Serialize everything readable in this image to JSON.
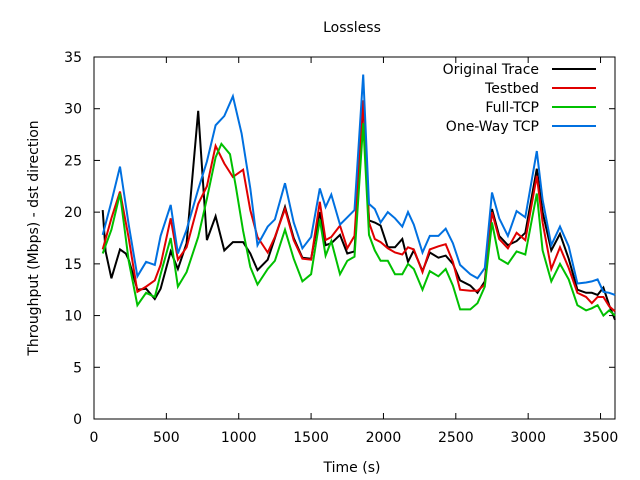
{
  "chart_data": {
    "type": "line",
    "title": "Lossless",
    "xlabel": "Time (s)",
    "ylabel": "Throughput (Mbps) - dst direction",
    "xlim": [
      0,
      3600
    ],
    "ylim": [
      0,
      35
    ],
    "xticks": [
      0,
      500,
      1000,
      1500,
      2000,
      2500,
      3000,
      3500
    ],
    "yticks": [
      0,
      5,
      10,
      15,
      20,
      25,
      30,
      35
    ],
    "grid": false,
    "legend_position": "top-right",
    "series": [
      {
        "name": "Original Trace",
        "color": "#000000",
        "points": [
          [
            60,
            20.2
          ],
          [
            80,
            16.2
          ],
          [
            120,
            13.6
          ],
          [
            180,
            16.4
          ],
          [
            220,
            16
          ],
          [
            240,
            15.4
          ],
          [
            300,
            12.5
          ],
          [
            360,
            12.6
          ],
          [
            420,
            11.6
          ],
          [
            460,
            12.6
          ],
          [
            530,
            16.2
          ],
          [
            580,
            14.5
          ],
          [
            640,
            17
          ],
          [
            720,
            29.8
          ],
          [
            780,
            17.3
          ],
          [
            840,
            19.6
          ],
          [
            900,
            16.3
          ],
          [
            960,
            17.1
          ],
          [
            1030,
            17.1
          ],
          [
            1080,
            16
          ],
          [
            1130,
            14.4
          ],
          [
            1200,
            15.4
          ],
          [
            1250,
            17.5
          ],
          [
            1320,
            20.5
          ],
          [
            1380,
            17.5
          ],
          [
            1440,
            15.6
          ],
          [
            1500,
            15.5
          ],
          [
            1560,
            20
          ],
          [
            1600,
            16.8
          ],
          [
            1640,
            17
          ],
          [
            1700,
            17.8
          ],
          [
            1750,
            16
          ],
          [
            1800,
            16.2
          ],
          [
            1860,
            30.8
          ],
          [
            1900,
            19.2
          ],
          [
            1940,
            19
          ],
          [
            1980,
            18.7
          ],
          [
            2030,
            16.6
          ],
          [
            2080,
            16.6
          ],
          [
            2130,
            17.4
          ],
          [
            2170,
            15.2
          ],
          [
            2210,
            16.3
          ],
          [
            2270,
            14.3
          ],
          [
            2320,
            16.1
          ],
          [
            2380,
            15.6
          ],
          [
            2430,
            15.8
          ],
          [
            2480,
            15
          ],
          [
            2530,
            13.4
          ],
          [
            2600,
            12.9
          ],
          [
            2650,
            12.2
          ],
          [
            2700,
            13.3
          ],
          [
            2750,
            20.3
          ],
          [
            2800,
            17.7
          ],
          [
            2860,
            16.8
          ],
          [
            2920,
            17.2
          ],
          [
            2980,
            18
          ],
          [
            3060,
            24.2
          ],
          [
            3100,
            20
          ],
          [
            3160,
            16.3
          ],
          [
            3220,
            17.9
          ],
          [
            3280,
            15.5
          ],
          [
            3340,
            12.5
          ],
          [
            3400,
            12.2
          ],
          [
            3440,
            12.2
          ],
          [
            3480,
            12
          ],
          [
            3520,
            12.7
          ],
          [
            3560,
            11
          ],
          [
            3600,
            9.6
          ]
        ]
      },
      {
        "name": "Testbed",
        "color": "#e00000",
        "points": [
          [
            60,
            16.4
          ],
          [
            120,
            19.4
          ],
          [
            180,
            22
          ],
          [
            240,
            17.5
          ],
          [
            300,
            12.3
          ],
          [
            360,
            12.8
          ],
          [
            420,
            13.4
          ],
          [
            460,
            14.9
          ],
          [
            530,
            19.4
          ],
          [
            580,
            15.4
          ],
          [
            640,
            16.6
          ],
          [
            720,
            20.8
          ],
          [
            780,
            22.5
          ],
          [
            840,
            26.4
          ],
          [
            900,
            24.7
          ],
          [
            960,
            23.4
          ],
          [
            1030,
            24.1
          ],
          [
            1080,
            20.2
          ],
          [
            1130,
            17.6
          ],
          [
            1200,
            16.1
          ],
          [
            1250,
            17.6
          ],
          [
            1320,
            20.3
          ],
          [
            1380,
            17.3
          ],
          [
            1440,
            15.5
          ],
          [
            1500,
            15.4
          ],
          [
            1560,
            21
          ],
          [
            1600,
            17.3
          ],
          [
            1640,
            17.6
          ],
          [
            1700,
            18.7
          ],
          [
            1750,
            16.5
          ],
          [
            1800,
            17.7
          ],
          [
            1860,
            30.8
          ],
          [
            1900,
            19
          ],
          [
            1940,
            17.4
          ],
          [
            1980,
            17.1
          ],
          [
            2030,
            16.5
          ],
          [
            2080,
            16.1
          ],
          [
            2130,
            15.9
          ],
          [
            2170,
            16.6
          ],
          [
            2210,
            16.4
          ],
          [
            2270,
            14.2
          ],
          [
            2320,
            16.4
          ],
          [
            2380,
            16.7
          ],
          [
            2430,
            16.9
          ],
          [
            2480,
            15.2
          ],
          [
            2530,
            12.5
          ],
          [
            2600,
            12.4
          ],
          [
            2650,
            12.4
          ],
          [
            2700,
            13
          ],
          [
            2750,
            20
          ],
          [
            2800,
            17.4
          ],
          [
            2860,
            16.5
          ],
          [
            2920,
            18
          ],
          [
            2980,
            17.3
          ],
          [
            3060,
            23.5
          ],
          [
            3100,
            19
          ],
          [
            3160,
            14.5
          ],
          [
            3220,
            16.6
          ],
          [
            3280,
            14.6
          ],
          [
            3340,
            12.2
          ],
          [
            3400,
            11.8
          ],
          [
            3440,
            11.2
          ],
          [
            3480,
            11.8
          ],
          [
            3520,
            11.8
          ],
          [
            3560,
            10.9
          ],
          [
            3600,
            10.4
          ]
        ]
      },
      {
        "name": "Full-TCP",
        "color": "#00c000",
        "points": [
          [
            60,
            16
          ],
          [
            120,
            18.3
          ],
          [
            180,
            21.8
          ],
          [
            240,
            15.3
          ],
          [
            300,
            11
          ],
          [
            360,
            12.2
          ],
          [
            420,
            11.8
          ],
          [
            460,
            14
          ],
          [
            530,
            17.5
          ],
          [
            580,
            12.8
          ],
          [
            640,
            14.2
          ],
          [
            720,
            17.6
          ],
          [
            780,
            21.3
          ],
          [
            840,
            25.3
          ],
          [
            880,
            26.6
          ],
          [
            940,
            25.6
          ],
          [
            980,
            22.5
          ],
          [
            1030,
            18.2
          ],
          [
            1080,
            14.7
          ],
          [
            1130,
            13
          ],
          [
            1200,
            14.5
          ],
          [
            1250,
            15.3
          ],
          [
            1320,
            18.3
          ],
          [
            1380,
            15.5
          ],
          [
            1440,
            13.3
          ],
          [
            1500,
            14
          ],
          [
            1560,
            19.3
          ],
          [
            1600,
            15.8
          ],
          [
            1640,
            17.2
          ],
          [
            1700,
            14
          ],
          [
            1750,
            15.3
          ],
          [
            1800,
            15.7
          ],
          [
            1860,
            28.6
          ],
          [
            1900,
            17.8
          ],
          [
            1940,
            16.3
          ],
          [
            1980,
            15.3
          ],
          [
            2030,
            15.3
          ],
          [
            2080,
            14
          ],
          [
            2130,
            14
          ],
          [
            2170,
            15
          ],
          [
            2210,
            14.5
          ],
          [
            2270,
            12.5
          ],
          [
            2320,
            14.3
          ],
          [
            2380,
            13.8
          ],
          [
            2430,
            14.5
          ],
          [
            2480,
            12.9
          ],
          [
            2530,
            10.6
          ],
          [
            2600,
            10.6
          ],
          [
            2650,
            11.2
          ],
          [
            2700,
            12.8
          ],
          [
            2750,
            19
          ],
          [
            2800,
            15.5
          ],
          [
            2860,
            15
          ],
          [
            2920,
            16.2
          ],
          [
            2980,
            15.9
          ],
          [
            3060,
            21.8
          ],
          [
            3100,
            16.3
          ],
          [
            3160,
            13.3
          ],
          [
            3220,
            15
          ],
          [
            3280,
            13.5
          ],
          [
            3340,
            11
          ],
          [
            3400,
            10.5
          ],
          [
            3440,
            10.7
          ],
          [
            3480,
            11
          ],
          [
            3520,
            10
          ],
          [
            3560,
            10.5
          ],
          [
            3600,
            10
          ]
        ]
      },
      {
        "name": "One-Way TCP",
        "color": "#0070e0",
        "points": [
          [
            60,
            17.8
          ],
          [
            120,
            21
          ],
          [
            180,
            24.4
          ],
          [
            240,
            18.8
          ],
          [
            300,
            13.8
          ],
          [
            360,
            15.2
          ],
          [
            420,
            14.9
          ],
          [
            460,
            17.7
          ],
          [
            530,
            20.7
          ],
          [
            580,
            16
          ],
          [
            640,
            18.3
          ],
          [
            720,
            22.2
          ],
          [
            780,
            24.9
          ],
          [
            840,
            28.4
          ],
          [
            900,
            29.3
          ],
          [
            960,
            31.2
          ],
          [
            1020,
            27.6
          ],
          [
            1080,
            22.3
          ],
          [
            1130,
            16.8
          ],
          [
            1200,
            18.6
          ],
          [
            1250,
            19.3
          ],
          [
            1320,
            22.8
          ],
          [
            1380,
            19
          ],
          [
            1440,
            16.5
          ],
          [
            1500,
            17.6
          ],
          [
            1560,
            22.3
          ],
          [
            1600,
            20.5
          ],
          [
            1640,
            21.7
          ],
          [
            1700,
            18.8
          ],
          [
            1750,
            19.5
          ],
          [
            1800,
            20.2
          ],
          [
            1860,
            33.3
          ],
          [
            1900,
            20.8
          ],
          [
            1940,
            20.3
          ],
          [
            1980,
            19
          ],
          [
            2030,
            20
          ],
          [
            2080,
            19.4
          ],
          [
            2130,
            18.6
          ],
          [
            2170,
            20
          ],
          [
            2210,
            18.8
          ],
          [
            2270,
            16.1
          ],
          [
            2320,
            17.7
          ],
          [
            2380,
            17.7
          ],
          [
            2430,
            18.4
          ],
          [
            2480,
            17
          ],
          [
            2530,
            14.9
          ],
          [
            2600,
            14
          ],
          [
            2650,
            13.6
          ],
          [
            2700,
            14.6
          ],
          [
            2750,
            21.9
          ],
          [
            2800,
            19.4
          ],
          [
            2860,
            17.7
          ],
          [
            2920,
            20.1
          ],
          [
            2980,
            19.5
          ],
          [
            3060,
            25.9
          ],
          [
            3100,
            21.2
          ],
          [
            3160,
            16.8
          ],
          [
            3220,
            18.6
          ],
          [
            3280,
            16.7
          ],
          [
            3340,
            13.1
          ],
          [
            3400,
            13.2
          ],
          [
            3440,
            13.3
          ],
          [
            3480,
            13.5
          ],
          [
            3520,
            12.3
          ],
          [
            3560,
            12.2
          ],
          [
            3600,
            12
          ]
        ]
      }
    ]
  }
}
